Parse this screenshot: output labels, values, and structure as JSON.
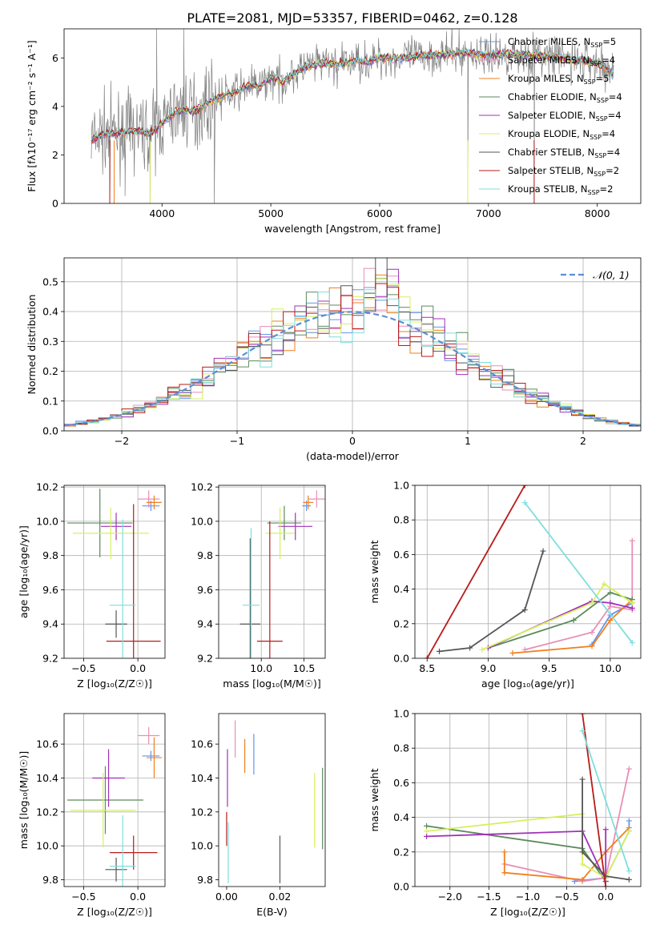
{
  "title": "PLATE=2081, MJD=53357, FIBERID=0462, z=0.128",
  "colors": {
    "chabrier_miles": "#6495ed",
    "salpeter_miles": "#e88fb5",
    "kroupa_miles": "#f07f1e",
    "chabrier_elodie": "#5c8a5c",
    "salpeter_elodie": "#a030b8",
    "kroupa_elodie": "#d6f060",
    "chabrier_stelib": "#555555",
    "salpeter_stelib": "#bb1a1a",
    "kroupa_stelib": "#7fdede",
    "normal_curve": "#5b8ed6",
    "grid": "#b0b0b0"
  },
  "chart_data": [
    {
      "id": "spectrum",
      "type": "line",
      "xlabel": "wavelength [Angstrom, rest frame]",
      "ylabel": "Flux [fλ10⁻¹⁷ erg cm⁻² s⁻¹ A⁻¹]",
      "xlim": [
        3100,
        8400
      ],
      "ylim": [
        0,
        7.2
      ],
      "xticks": [
        4000,
        5000,
        6000,
        7000,
        8000
      ],
      "yticks": [
        0,
        2,
        4,
        6
      ],
      "grid": false,
      "legend_position": "right",
      "legend": [
        {
          "label": "Chabrier MILES, N",
          "sub": "SSP",
          "post": "=5",
          "color": "chabrier_miles"
        },
        {
          "label": "Salpeter MILES, N",
          "sub": "SSP",
          "post": "=4",
          "color": "salpeter_miles"
        },
        {
          "label": "Kroupa MILES, N",
          "sub": "SSP",
          "post": "=5",
          "color": "kroupa_miles"
        },
        {
          "label": "Chabrier ELODIE, N",
          "sub": "SSP",
          "post": "=4",
          "color": "chabrier_elodie"
        },
        {
          "label": "Salpeter ELODIE, N",
          "sub": "SSP",
          "post": "=4",
          "color": "salpeter_elodie"
        },
        {
          "label": "Kroupa ELODIE, N",
          "sub": "SSP",
          "post": "=4",
          "color": "kroupa_elodie"
        },
        {
          "label": "Chabrier STELIB, N",
          "sub": "SSP",
          "post": "=4",
          "color": "chabrier_stelib"
        },
        {
          "label": "Salpeter STELIB, N",
          "sub": "SSP",
          "post": "=2",
          "color": "salpeter_stelib"
        },
        {
          "label": "Kroupa STELIB, N",
          "sub": "SSP",
          "post": "=2",
          "color": "kroupa_stelib"
        }
      ],
      "observed_color": "#808080",
      "continuum_knots": [
        [
          3350,
          2.6
        ],
        [
          3450,
          2.85
        ],
        [
          3600,
          2.9
        ],
        [
          3700,
          3.0
        ],
        [
          3800,
          2.95
        ],
        [
          3900,
          2.9
        ],
        [
          4000,
          3.3
        ],
        [
          4100,
          3.7
        ],
        [
          4200,
          3.9
        ],
        [
          4300,
          3.8
        ],
        [
          4400,
          4.1
        ],
        [
          4500,
          4.3
        ],
        [
          4600,
          4.5
        ],
        [
          4700,
          4.6
        ],
        [
          4800,
          4.9
        ],
        [
          4900,
          4.8
        ],
        [
          5000,
          5.2
        ],
        [
          5100,
          5.0
        ],
        [
          5200,
          5.3
        ],
        [
          5300,
          5.6
        ],
        [
          5400,
          5.7
        ],
        [
          5500,
          5.8
        ],
        [
          5600,
          5.7
        ],
        [
          5700,
          5.8
        ],
        [
          5800,
          5.9
        ],
        [
          5900,
          5.85
        ],
        [
          6000,
          6.0
        ],
        [
          6200,
          6.0
        ],
        [
          6400,
          6.1
        ],
        [
          6600,
          6.15
        ],
        [
          6800,
          6.2
        ],
        [
          7000,
          6.1
        ],
        [
          7200,
          6.15
        ],
        [
          7400,
          6.1
        ],
        [
          7600,
          6.05
        ],
        [
          7800,
          5.9
        ],
        [
          8000,
          5.8
        ],
        [
          8150,
          5.3
        ]
      ],
      "observed_spikes": [
        [
          3520,
          0
        ],
        [
          3660,
          0.3
        ],
        [
          3890,
          0
        ],
        [
          4480,
          0
        ],
        [
          6810,
          0
        ],
        [
          7420,
          0
        ],
        [
          3950,
          7.2
        ],
        [
          4200,
          7.2
        ]
      ]
    },
    {
      "id": "residual_histogram",
      "type": "bar",
      "xlabel": "(data-model)/error",
      "ylabel": "Normed distribution",
      "xlim": [
        -2.5,
        2.5
      ],
      "ylim": [
        0,
        0.58
      ],
      "xticks": [
        -2,
        -1,
        0,
        1,
        2
      ],
      "yticks": [
        0.0,
        0.1,
        0.2,
        0.3,
        0.4,
        0.5
      ],
      "grid": true,
      "legend": [
        {
          "label": "𝒩(0, 1)",
          "style": "dashed",
          "color": "normal_curve"
        }
      ],
      "legend_position": "top-right",
      "bin_width": 0.1
    },
    {
      "id": "age_vs_z",
      "type": "scatter",
      "xlabel": "Z [log₁₀(Z/Z☉)]",
      "ylabel": "age  [log₁₀(age/yr)]",
      "xlim": [
        -0.68,
        0.25
      ],
      "ylim": [
        9.2,
        10.21
      ],
      "xticks": [
        -0.5,
        0.0
      ],
      "yticks": [
        9.2,
        9.4,
        9.6,
        9.8,
        10.0,
        10.2
      ],
      "grid": true,
      "points": [
        {
          "c": "chabrier_miles",
          "x": 0.12,
          "y": 10.09,
          "xerr": 0.08,
          "yerr": 0.03
        },
        {
          "c": "salpeter_miles",
          "x": 0.1,
          "y": 10.13,
          "xerr": 0.1,
          "yerr": 0.05
        },
        {
          "c": "kroupa_miles",
          "x": 0.15,
          "y": 10.11,
          "xerr": 0.07,
          "yerr": 0.04
        },
        {
          "c": "chabrier_elodie",
          "x": -0.35,
          "y": 9.99,
          "xerr": 0.3,
          "yerr": 0.2
        },
        {
          "c": "salpeter_elodie",
          "x": -0.2,
          "y": 9.97,
          "xerr": 0.14,
          "yerr": 0.08
        },
        {
          "c": "kroupa_elodie",
          "x": -0.25,
          "y": 9.93,
          "xerr": 0.35,
          "yerr": 0.15
        },
        {
          "c": "chabrier_stelib",
          "x": -0.2,
          "y": 9.4,
          "xerr": 0.1,
          "yerr": 0.08
        },
        {
          "c": "salpeter_stelib",
          "x": -0.04,
          "y": 9.3,
          "xerr": 0.25,
          "yerr": 0.8
        },
        {
          "c": "kroupa_stelib",
          "x": -0.14,
          "y": 9.51,
          "xerr": 0.12,
          "yerr": 0.5
        }
      ]
    },
    {
      "id": "age_vs_mass",
      "type": "scatter",
      "xlabel": "mass [log₁₀(M/M☉)]",
      "ylabel": "",
      "xlim": [
        9.5,
        10.75
      ],
      "ylim": [
        9.2,
        10.21
      ],
      "xticks": [
        10.0,
        10.5
      ],
      "yticks": [
        9.2,
        9.4,
        9.6,
        9.8,
        10.0,
        10.2
      ],
      "grid": true,
      "points": [
        {
          "c": "chabrier_miles",
          "x": 10.53,
          "y": 10.09,
          "xerr": 0.05,
          "yerr": 0.03
        },
        {
          "c": "salpeter_miles",
          "x": 10.65,
          "y": 10.13,
          "xerr": 0.1,
          "yerr": 0.05
        },
        {
          "c": "kroupa_miles",
          "x": 10.55,
          "y": 10.11,
          "xerr": 0.06,
          "yerr": 0.04
        },
        {
          "c": "chabrier_elodie",
          "x": 10.27,
          "y": 9.99,
          "xerr": 0.2,
          "yerr": 0.1
        },
        {
          "c": "salpeter_elodie",
          "x": 10.4,
          "y": 9.97,
          "xerr": 0.2,
          "yerr": 0.08
        },
        {
          "c": "kroupa_elodie",
          "x": 10.22,
          "y": 9.93,
          "xerr": 0.17,
          "yerr": 0.15
        },
        {
          "c": "chabrier_stelib",
          "x": 9.87,
          "y": 9.4,
          "xerr": 0.12,
          "yerr": 0.5
        },
        {
          "c": "salpeter_stelib",
          "x": 10.1,
          "y": 9.3,
          "xerr": 0.15,
          "yerr": 0.7
        },
        {
          "c": "kroupa_stelib",
          "x": 9.88,
          "y": 9.51,
          "xerr": 0.1,
          "yerr": 0.45
        }
      ]
    },
    {
      "id": "weights_vs_age",
      "type": "line",
      "xlabel": "age  [log₁₀(age/yr)]",
      "ylabel": "mass weight",
      "xlim": [
        8.4,
        10.25
      ],
      "ylim": [
        0,
        1.0
      ],
      "xticks": [
        8.5,
        9.0,
        9.5,
        10.0
      ],
      "yticks": [
        0.0,
        0.2,
        0.4,
        0.6,
        0.8,
        1.0
      ],
      "grid": true,
      "series": [
        {
          "c": "chabrier_miles",
          "x": [
            9.85,
            10.0,
            10.18
          ],
          "y": [
            0.08,
            0.25,
            0.32
          ]
        },
        {
          "c": "salpeter_miles",
          "x": [
            9.3,
            9.85,
            10.0,
            10.18,
            10.18
          ],
          "y": [
            0.05,
            0.15,
            0.3,
            0.28,
            0.68
          ]
        },
        {
          "c": "kroupa_miles",
          "x": [
            9.2,
            9.85,
            10.0,
            10.18
          ],
          "y": [
            0.03,
            0.07,
            0.22,
            0.34
          ]
        },
        {
          "c": "chabrier_elodie",
          "x": [
            9.0,
            9.7,
            10.0,
            10.18
          ],
          "y": [
            0.06,
            0.22,
            0.38,
            0.34
          ]
        },
        {
          "c": "salpeter_elodie",
          "x": [
            9.0,
            9.85,
            10.0,
            10.18
          ],
          "y": [
            0.06,
            0.33,
            0.32,
            0.29
          ]
        },
        {
          "c": "kroupa_elodie",
          "x": [
            8.95,
            9.85,
            9.95,
            10.18
          ],
          "y": [
            0.05,
            0.32,
            0.43,
            0.32
          ]
        },
        {
          "c": "chabrier_stelib",
          "x": [
            8.6,
            8.85,
            9.3,
            9.45
          ],
          "y": [
            0.04,
            0.06,
            0.28,
            0.62
          ]
        },
        {
          "c": "salpeter_stelib",
          "x": [
            8.5,
            9.3
          ],
          "y": [
            0.0,
            1.0
          ]
        },
        {
          "c": "kroupa_stelib",
          "x": [
            9.3,
            10.18
          ],
          "y": [
            0.9,
            0.09
          ]
        }
      ]
    },
    {
      "id": "mass_vs_z",
      "type": "scatter",
      "xlabel": "Z [log₁₀(Z/Z☉)]",
      "ylabel": "mass [log₁₀(M/M☉)]",
      "xlim": [
        -0.68,
        0.25
      ],
      "ylim": [
        9.76,
        10.78
      ],
      "xticks": [
        -0.5,
        0.0
      ],
      "yticks": [
        9.8,
        10.0,
        10.2,
        10.4,
        10.6
      ],
      "grid": true,
      "points": [
        {
          "c": "chabrier_miles",
          "x": 0.12,
          "y": 10.53,
          "xerr": 0.08,
          "yerr": 0.03
        },
        {
          "c": "salpeter_miles",
          "x": 0.1,
          "y": 10.65,
          "xerr": 0.1,
          "yerr": 0.05
        },
        {
          "c": "kroupa_miles",
          "x": 0.15,
          "y": 10.52,
          "xerr": 0.07,
          "yerr": 0.12
        },
        {
          "c": "chabrier_elodie",
          "x": -0.3,
          "y": 10.27,
          "xerr": 0.35,
          "yerr": 0.2
        },
        {
          "c": "salpeter_elodie",
          "x": -0.27,
          "y": 10.4,
          "xerr": 0.15,
          "yerr": 0.17
        },
        {
          "c": "kroupa_elodie",
          "x": -0.32,
          "y": 10.21,
          "xerr": 0.3,
          "yerr": 0.22
        },
        {
          "c": "chabrier_stelib",
          "x": -0.2,
          "y": 9.86,
          "xerr": 0.1,
          "yerr": 0.07
        },
        {
          "c": "salpeter_stelib",
          "x": -0.04,
          "y": 9.96,
          "xerr": 0.22,
          "yerr": 0.1
        },
        {
          "c": "kroupa_stelib",
          "x": -0.14,
          "y": 9.88,
          "xerr": 0.12,
          "yerr": 0.3
        }
      ]
    },
    {
      "id": "mass_vs_ebv",
      "type": "scatter",
      "xlabel": "E(B-V)",
      "ylabel": "",
      "xlim": [
        -0.003,
        0.037
      ],
      "ylim": [
        9.76,
        10.78
      ],
      "xticks": [
        0.0,
        0.02
      ],
      "yticks": [
        9.8,
        10.0,
        10.2,
        10.4,
        10.6
      ],
      "grid": false,
      "points": [
        {
          "c": "chabrier_miles",
          "x": 0.0102,
          "y": 10.54,
          "xerr": 0,
          "yerr": 0.12
        },
        {
          "c": "salpeter_miles",
          "x": 0.0032,
          "y": 10.63,
          "xerr": 0,
          "yerr": 0.11
        },
        {
          "c": "kroupa_miles",
          "x": 0.0068,
          "y": 10.53,
          "xerr": 0,
          "yerr": 0.1
        },
        {
          "c": "chabrier_elodie",
          "x": 0.036,
          "y": 10.22,
          "xerr": 0,
          "yerr": 0.24
        },
        {
          "c": "salpeter_elodie",
          "x": 0.0003,
          "y": 10.4,
          "xerr": 0,
          "yerr": 0.17
        },
        {
          "c": "kroupa_elodie",
          "x": 0.033,
          "y": 10.21,
          "xerr": 0,
          "yerr": 0.22
        },
        {
          "c": "chabrier_stelib",
          "x": 0.02,
          "y": 9.92,
          "xerr": 0,
          "yerr": 0.14
        },
        {
          "c": "salpeter_stelib",
          "x": 0.0,
          "y": 10.1,
          "xerr": 0,
          "yerr": 0.1
        },
        {
          "c": "kroupa_stelib",
          "x": 0.0006,
          "y": 9.96,
          "xerr": 0,
          "yerr": 0.18
        }
      ]
    },
    {
      "id": "weights_vs_z",
      "type": "line",
      "xlabel": "Z [log₁₀(Z/Z☉)]",
      "ylabel": "mass weight",
      "xlim": [
        -2.45,
        0.45
      ],
      "ylim": [
        0,
        1.0
      ],
      "xticks": [
        -2.0,
        -1.5,
        -1.0,
        -0.5,
        0.0
      ],
      "yticks": [
        0.0,
        0.2,
        0.4,
        0.6,
        0.8,
        1.0
      ],
      "grid": true,
      "series": [
        {
          "c": "chabrier_miles",
          "x": [
            -0.4,
            0.0,
            0.3,
            0.3
          ],
          "y": [
            0.03,
            0.05,
            0.32,
            0.38
          ]
        },
        {
          "c": "salpeter_miles",
          "x": [
            -1.3,
            -0.3,
            0.0,
            0.3
          ],
          "y": [
            0.13,
            0.03,
            0.05,
            0.68
          ]
        },
        {
          "c": "kroupa_miles",
          "x": [
            -1.3,
            -1.3,
            -0.3,
            0.0,
            0.3
          ],
          "y": [
            0.2,
            0.08,
            0.04,
            0.2,
            0.34
          ]
        },
        {
          "c": "chabrier_elodie",
          "x": [
            -2.3,
            -0.3,
            0.0
          ],
          "y": [
            0.35,
            0.22,
            0.03
          ]
        },
        {
          "c": "salpeter_elodie",
          "x": [
            -2.3,
            -0.3,
            0.0,
            0.0
          ],
          "y": [
            0.29,
            0.32,
            0.03,
            0.33
          ]
        },
        {
          "c": "kroupa_elodie",
          "x": [
            -2.3,
            -0.3,
            -0.3,
            0.0,
            0.3
          ],
          "y": [
            0.32,
            0.42,
            0.13,
            0.05,
            0.32
          ]
        },
        {
          "c": "chabrier_stelib",
          "x": [
            -0.3,
            -0.3,
            0.0,
            0.3
          ],
          "y": [
            0.62,
            0.2,
            0.06,
            0.04
          ]
        },
        {
          "c": "salpeter_stelib",
          "x": [
            -0.3,
            0.0
          ],
          "y": [
            1.0,
            0.0
          ]
        },
        {
          "c": "kroupa_stelib",
          "x": [
            -0.3,
            0.3
          ],
          "y": [
            0.9,
            0.09
          ]
        }
      ]
    }
  ]
}
